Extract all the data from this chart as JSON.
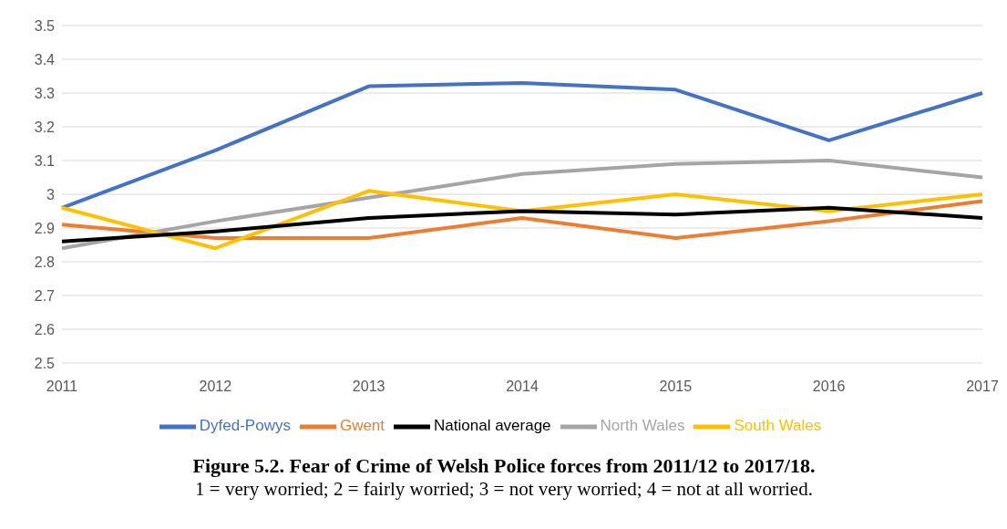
{
  "chart_data": {
    "type": "line",
    "title": "Figure 5.2. Fear of Crime of Welsh Police forces from 2011/12 to 2017/18.",
    "subtitle": "1 = very worried; 2 = fairly worried; 3 = not very worried; 4 = not at all worried.",
    "categories": [
      "2011",
      "2012",
      "2013",
      "2014",
      "2015",
      "2016",
      "2017"
    ],
    "series": [
      {
        "name": "Dyfed-Powys",
        "color": "#4472c4",
        "values": [
          2.96,
          3.13,
          3.32,
          3.33,
          3.31,
          3.16,
          3.3
        ]
      },
      {
        "name": "Gwent",
        "color": "#ed7d31",
        "values": [
          2.91,
          2.87,
          2.87,
          2.93,
          2.87,
          2.92,
          2.98
        ]
      },
      {
        "name": "North Wales",
        "color": "#a5a5a5",
        "values": [
          2.84,
          2.92,
          2.99,
          3.06,
          3.09,
          3.1,
          3.05
        ]
      },
      {
        "name": "South Wales",
        "color": "#ffc000",
        "values": [
          2.96,
          2.84,
          3.01,
          2.95,
          3.0,
          2.95,
          3.0
        ]
      },
      {
        "name": "National average",
        "color": "#000000",
        "values": [
          2.86,
          2.89,
          2.93,
          2.95,
          2.94,
          2.96,
          2.93
        ]
      }
    ],
    "ylim": [
      2.5,
      3.5
    ],
    "yticks": [
      2.5,
      2.6,
      2.7,
      2.8,
      2.9,
      3,
      3.1,
      3.2,
      3.3,
      3.4,
      3.5
    ],
    "grid": "y",
    "legend": "bottom",
    "marker": "none",
    "line_style": "solid"
  }
}
